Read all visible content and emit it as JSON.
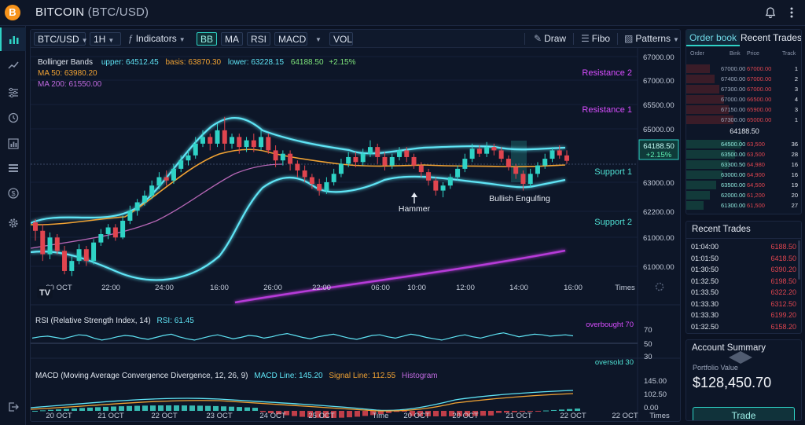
{
  "app": {
    "coin_letter": "B",
    "title": "BITCOIN",
    "pair": "(BTC/USD)"
  },
  "toolbar": {
    "symbol": "BTC/USD",
    "interval": "1H",
    "indicators": "Indicators",
    "bb": "BB",
    "ma": "MA",
    "rsi": "RSI",
    "macd": "MACD",
    "vol": "VOL",
    "draw": "Draw",
    "fibo": "Fibo",
    "patterns": "Patterns"
  },
  "legend": {
    "bb_title": "Bollinger Bands",
    "bb_upper": "upper: 64512.45",
    "bb_basis": "basis: 63870.30",
    "bb_lower": "lower: 63228.15",
    "bb_last": "64188.50",
    "bb_change": "+2.15%",
    "ma50": "MA 50: 63980.20",
    "ma200": "MA 200: 61550.00"
  },
  "annotations": {
    "resistance2": "Resistance 2",
    "resistance1": "Resistance 1",
    "support1": "Support 1",
    "support2": "Support 2",
    "hammer": "Hammer",
    "bullish_engulfing": "Bullish Engulfing",
    "price_tag": "64188.50",
    "price_change": "+2.15%",
    "watermark": "TV"
  },
  "price_axis": [
    "67000.00",
    "67000.00",
    "65500.00",
    "65000.00",
    "63000.00",
    "62200.00",
    "61000.00",
    "61000.00"
  ],
  "time_axis": [
    "20 OCT",
    "22:00",
    "24:00",
    "16:00",
    "26:00",
    "22:00",
    "06:00",
    "10:00",
    "12:00",
    "14:00",
    "16:00",
    "Times"
  ],
  "rsi": {
    "title": "RSI (Relative Strength Index, 14)",
    "value": "RSI: 61.45",
    "overbought": "overbought 70",
    "oversold": "oversold 30",
    "axis": [
      "70",
      "50",
      "30"
    ],
    "series": [
      58,
      60,
      61,
      59,
      57,
      60,
      63,
      62,
      58,
      55,
      57,
      60,
      62,
      61,
      58,
      56,
      59,
      62,
      64,
      60,
      57,
      55,
      58,
      61,
      63,
      60,
      57,
      59,
      62,
      61,
      58,
      60,
      63,
      65,
      62,
      59,
      57,
      60,
      62,
      64,
      61,
      58,
      56,
      59,
      62,
      63,
      60,
      58,
      61,
      64,
      62,
      59,
      57,
      55,
      58,
      61,
      63,
      60,
      58,
      61,
      64,
      66,
      63,
      60,
      62,
      64,
      63,
      61,
      62,
      63,
      61.45
    ]
  },
  "macd": {
    "title": "MACD (Moving Average Convergence Divergence, 12, 26, 9)",
    "line": "MACD Line: 145.20",
    "signal": "Signal Line: 112.55",
    "hist": "Histogram",
    "axis": [
      "145.00",
      "102.50",
      "0.00"
    ],
    "bottom_axis": [
      "20 OCT",
      "21 OCT",
      "22 OCT",
      "23 OCT",
      "24 OCT",
      "25 OCT",
      "Time",
      "20 OCT",
      "20 OCT",
      "21 OCT",
      "22 OCT",
      "22 OCT",
      "Times"
    ]
  },
  "orderbook": {
    "tab_orderbook": "Order book",
    "tab_recent": "Recent Trades",
    "headers": {
      "order": "Order",
      "bink": "Bink",
      "price": "Price",
      "track": "Track"
    },
    "asks": [
      {
        "bink": "67000.00",
        "price": "67000.00",
        "track": "1"
      },
      {
        "bink": "67400.00",
        "price": "67000.00",
        "track": "2"
      },
      {
        "bink": "67300.00",
        "price": "67000.00",
        "track": "3"
      },
      {
        "bink": "67000.00",
        "price": "66500.00",
        "track": "4"
      },
      {
        "bink": "67150.00",
        "price": "65900.00",
        "track": "3"
      },
      {
        "bink": "67300.00",
        "price": "65000.00",
        "track": "1"
      }
    ],
    "mid_price": "64188.50",
    "bids": [
      {
        "bink": "64500.00",
        "price": "63,500",
        "track": "36"
      },
      {
        "bink": "63500.00",
        "price": "63,500",
        "track": "28"
      },
      {
        "bink": "63300.50",
        "price": "64,980",
        "track": "16"
      },
      {
        "bink": "63000.00",
        "price": "64,900",
        "track": "16"
      },
      {
        "bink": "63500.00",
        "price": "64,500",
        "track": "19"
      },
      {
        "bink": "62000.00",
        "price": "61,200",
        "track": "20"
      },
      {
        "bink": "61300.00",
        "price": "61,500",
        "track": "27"
      }
    ]
  },
  "recent_trades": {
    "title": "Recent Trades",
    "rows": [
      {
        "time": "01:04:00",
        "price": "6188.50"
      },
      {
        "time": "01:01:50",
        "price": "6418.50"
      },
      {
        "time": "01:30:50",
        "price": "6390.20"
      },
      {
        "time": "01:32.50",
        "price": "6198.50"
      },
      {
        "time": "01:33.50",
        "price": "6322.20"
      },
      {
        "time": "01:33.30",
        "price": "6312.50"
      },
      {
        "time": "01:33.30",
        "price": "6199.20"
      },
      {
        "time": "01:32.50",
        "price": "6158.20"
      }
    ]
  },
  "account": {
    "title": "Account Summary",
    "label": "Portfolio Value",
    "value": "$128,450.70",
    "trade": "Trade"
  },
  "colors": {
    "accent": "#2fd3c6",
    "up": "#2fd3c6",
    "down": "#e0454f",
    "magenta": "#d84dff",
    "orange": "#f0a233"
  },
  "chart_data": {
    "type": "candlestick",
    "ylim": [
      60500,
      67300
    ],
    "candles": [
      [
        62350,
        62100,
        62450,
        61800
      ],
      [
        62100,
        61400,
        62300,
        61200
      ],
      [
        61400,
        61900,
        62050,
        61250
      ],
      [
        61900,
        61500,
        62000,
        61400
      ],
      [
        61500,
        60900,
        61650,
        60800
      ],
      [
        60900,
        61200,
        61350,
        60750
      ],
      [
        61200,
        61550,
        61700,
        61100
      ],
      [
        61550,
        61200,
        61650,
        61050
      ],
      [
        61200,
        61750,
        61850,
        61100
      ],
      [
        61750,
        62000,
        62150,
        61650
      ],
      [
        62000,
        62200,
        62300,
        61850
      ],
      [
        62200,
        61900,
        62300,
        61800
      ],
      [
        61900,
        62400,
        62550,
        61850
      ],
      [
        62400,
        62700,
        62850,
        62300
      ],
      [
        62700,
        62950,
        63050,
        62550
      ],
      [
        62950,
        63150,
        63300,
        62850
      ],
      [
        63150,
        63450,
        63600,
        63050
      ],
      [
        63450,
        63700,
        63850,
        63350
      ],
      [
        63700,
        63600,
        63900,
        63450
      ],
      [
        63600,
        63950,
        64100,
        63500
      ],
      [
        63950,
        64200,
        64350,
        63850
      ],
      [
        64200,
        64350,
        64500,
        64050
      ],
      [
        64350,
        64700,
        64900,
        64250
      ],
      [
        64700,
        64900,
        65100,
        64600
      ],
      [
        64900,
        64700,
        65000,
        64500
      ],
      [
        64700,
        65100,
        65300,
        64600
      ],
      [
        65100,
        64700,
        65500,
        64500
      ],
      [
        64700,
        64900,
        65000,
        64550
      ],
      [
        64900,
        64600,
        65000,
        64400
      ],
      [
        64600,
        64800,
        64900,
        64450
      ],
      [
        64800,
        64600,
        65000,
        64450
      ],
      [
        64600,
        64900,
        65100,
        64500
      ],
      [
        64900,
        64500,
        65000,
        64400
      ],
      [
        64500,
        64200,
        64650,
        64000
      ],
      [
        64200,
        64400,
        64500,
        64050
      ],
      [
        64400,
        64100,
        64500,
        63900
      ],
      [
        64100,
        63900,
        64200,
        63700
      ],
      [
        63900,
        63700,
        64050,
        63550
      ],
      [
        63700,
        63500,
        63800,
        63350
      ],
      [
        63500,
        63300,
        63650,
        63150
      ],
      [
        63300,
        63550,
        63700,
        63200
      ],
      [
        63550,
        63800,
        63950,
        63450
      ],
      [
        63800,
        64100,
        64250,
        63700
      ],
      [
        64100,
        64300,
        64450,
        64000
      ],
      [
        64300,
        64150,
        64450,
        64000
      ],
      [
        64150,
        64400,
        64550,
        64050
      ],
      [
        64400,
        64600,
        64800,
        64300
      ],
      [
        64600,
        64300,
        64700,
        64100
      ],
      [
        64300,
        64050,
        64450,
        63900
      ],
      [
        64050,
        64300,
        64400,
        63950
      ],
      [
        64300,
        64500,
        64600,
        64200
      ],
      [
        64500,
        64300,
        64600,
        64150
      ],
      [
        64300,
        64050,
        64400,
        63950
      ],
      [
        64050,
        63850,
        64150,
        63700
      ],
      [
        63850,
        63600,
        63950,
        63450
      ],
      [
        63600,
        63300,
        63700,
        63150
      ],
      [
        63300,
        63450,
        63550,
        63100
      ],
      [
        63450,
        63700,
        63800,
        63350
      ],
      [
        63700,
        63950,
        64050,
        63600
      ],
      [
        63950,
        64250,
        64400,
        63850
      ],
      [
        64250,
        64550,
        64700,
        64150
      ],
      [
        64550,
        64400,
        64650,
        64300
      ],
      [
        64400,
        64600,
        64750,
        64300
      ],
      [
        64600,
        64500,
        64700,
        64350
      ],
      [
        64500,
        64250,
        64600,
        64150
      ],
      [
        64250,
        64000,
        64350,
        63900
      ],
      [
        64000,
        63800,
        64100,
        63650
      ],
      [
        63800,
        63500,
        63900,
        63300
      ],
      [
        63500,
        63800,
        63950,
        63400
      ],
      [
        63800,
        64050,
        64150,
        63700
      ],
      [
        64050,
        64250,
        64400,
        63950
      ],
      [
        64250,
        64500,
        64600,
        64150
      ],
      [
        64500,
        64350,
        64650,
        64250
      ],
      [
        64350,
        64188,
        64500,
        64100
      ]
    ]
  }
}
